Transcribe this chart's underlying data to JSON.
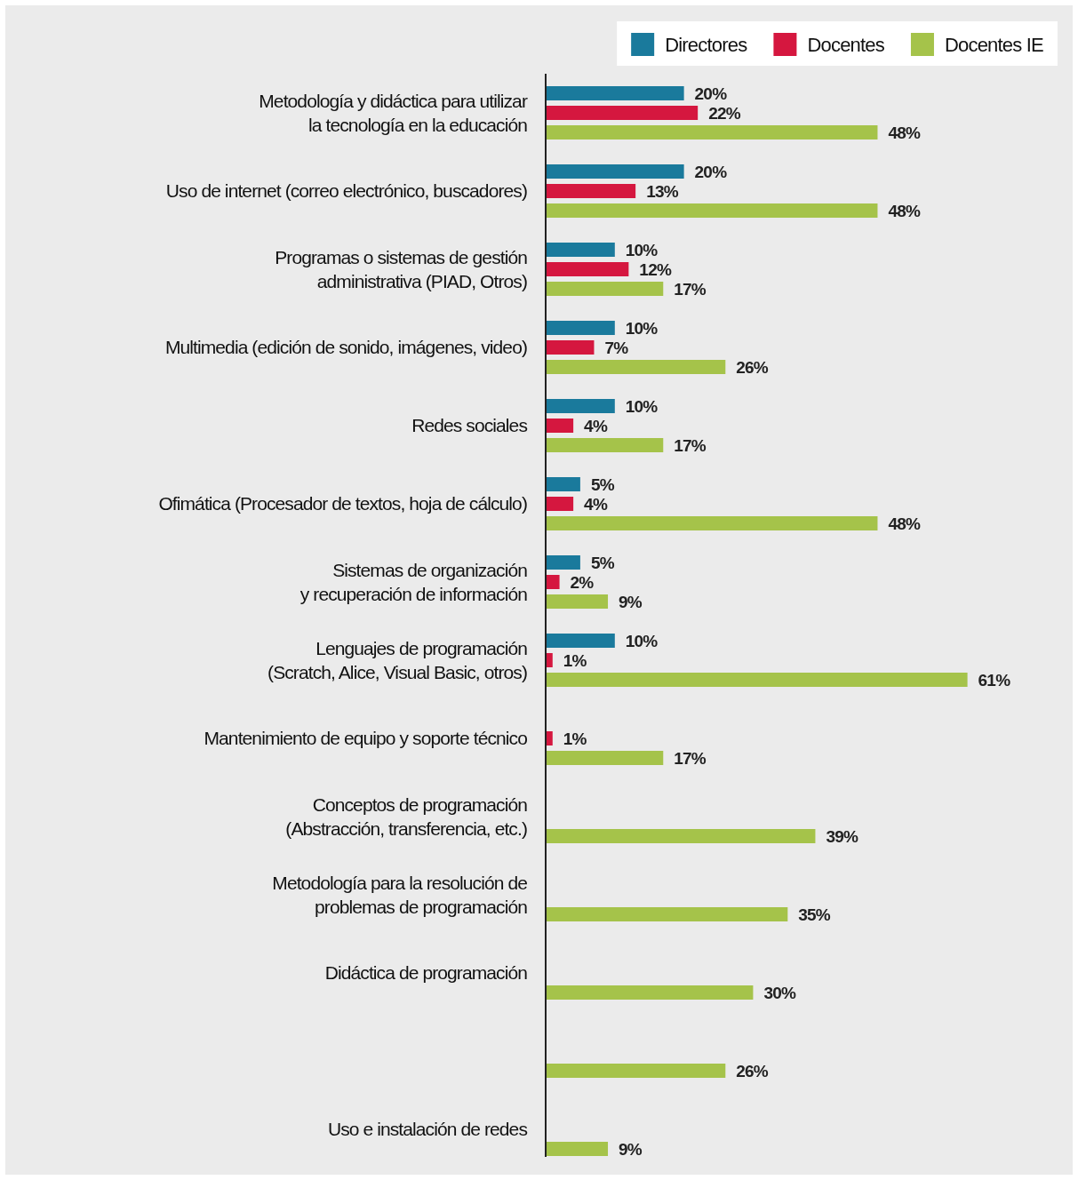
{
  "chart_data": {
    "type": "bar",
    "orientation": "horizontal",
    "legend": "top right",
    "categories": [
      "Metodología y didáctica para utilizar\nla tecnología en la educación",
      "Uso de internet (correo electrónico, buscadores)",
      "Programas o sistemas de gestión\nadministrativa (PIAD, Otros)",
      "Multimedia (edición de sonido, imágenes, video)",
      "Redes sociales",
      "Ofimática (Procesador de textos, hoja de cálculo)",
      "Sistemas de organización\ny recuperación de información",
      "Lenguajes de programación\n(Scratch, Alice, Visual Basic, otros)",
      "Mantenimiento de equipo y soporte técnico",
      "Conceptos de programación\n(Abstracción, transferencia, etc.)",
      "Metodología para la resolución de\nproblemas de programación",
      "Didáctica de programación",
      null,
      "Uso e instalación de redes"
    ],
    "series": [
      {
        "name": "Directores",
        "color": "#1a7a9c",
        "values": [
          20,
          20,
          10,
          10,
          10,
          5,
          5,
          10,
          null,
          null,
          null,
          null,
          null,
          null
        ],
        "value_labels": [
          "20%",
          "20%",
          "10%",
          "10%",
          "10%",
          "5%",
          "5%",
          "10%",
          null,
          null,
          null,
          null,
          null,
          null
        ]
      },
      {
        "name": "Docentes",
        "color": "#d5173f",
        "values": [
          22,
          13,
          12,
          7,
          4,
          4,
          2,
          1,
          1,
          null,
          null,
          null,
          null,
          null
        ],
        "value_labels": [
          "22%",
          "13%",
          "12%",
          "7%",
          "4%",
          "4%",
          "2%",
          "1%",
          "1%",
          null,
          null,
          null,
          null,
          null
        ]
      },
      {
        "name": "Docentes IE",
        "color": "#a5c34a",
        "values": [
          48,
          48,
          17,
          26,
          17,
          48,
          9,
          61,
          17,
          39,
          35,
          30,
          26,
          9
        ],
        "value_labels": [
          "48%",
          "48%",
          "17%",
          "26%",
          "17%",
          "48%",
          "9%",
          "61%",
          "17%",
          "39%",
          "35%",
          "30%",
          "26%",
          "9%"
        ]
      }
    ]
  }
}
